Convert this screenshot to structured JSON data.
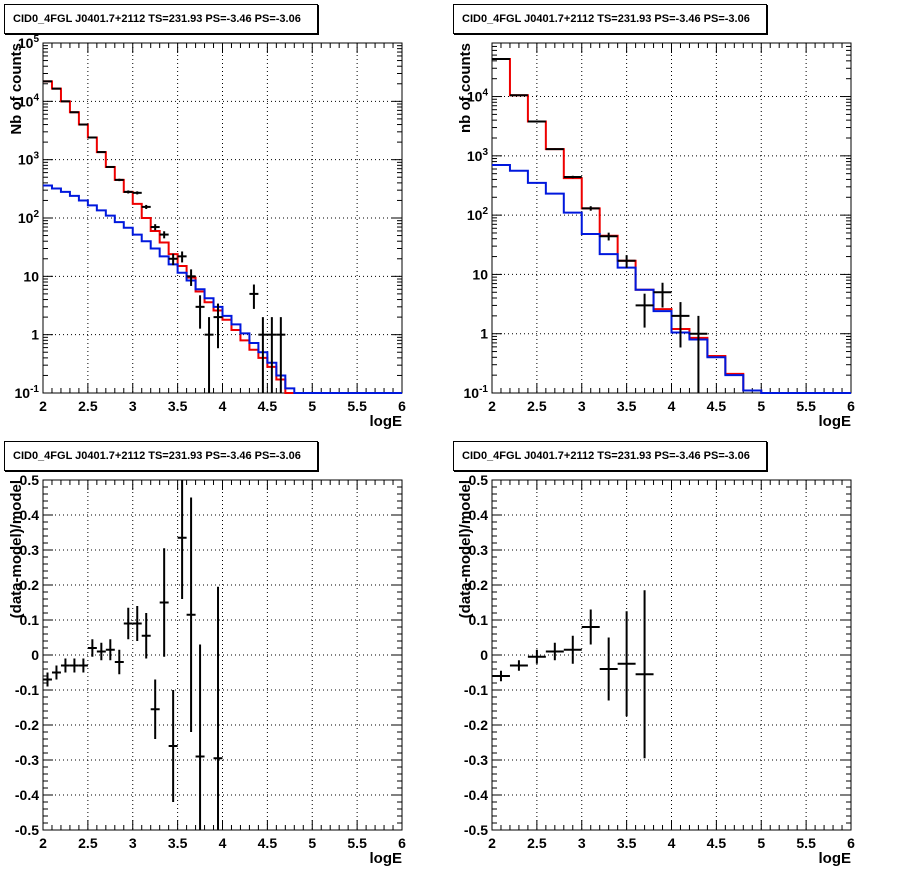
{
  "colors": {
    "data": "#000000",
    "total_model": "#ee0000",
    "source_model": "#0018dd",
    "grid": "#000000"
  },
  "chart_data": [
    {
      "type": "line",
      "title": "CID0_4FGL J0401.7+2112 TS=231.93 PS=-3.46 PS=-3.06",
      "xlabel": "logE",
      "ylabel": "Nb of counts",
      "xlim": [
        2,
        6
      ],
      "ylim": [
        0.1,
        100000
      ],
      "yscale": "log",
      "xticks": [
        "2",
        "2.5",
        "3",
        "3.5",
        "4",
        "4.5",
        "5",
        "5.5",
        "6"
      ],
      "yticks": [
        "10^{-1}",
        "1",
        "10",
        "10^{2}",
        "10^{3}",
        "10^{4}",
        "10^{5}"
      ],
      "grid": true,
      "bin_edges": [
        2.0,
        2.1,
        2.2,
        2.3,
        2.4,
        2.5,
        2.6,
        2.7,
        2.8,
        2.9,
        3.0,
        3.1,
        3.2,
        3.3,
        3.4,
        3.5,
        3.6,
        3.7,
        3.8,
        3.9,
        4.0,
        4.1,
        4.2,
        4.3,
        4.4,
        4.5,
        4.6,
        4.7,
        4.8,
        4.9,
        5.0,
        5.1,
        5.2,
        5.3,
        5.4,
        5.5,
        5.6,
        5.7,
        5.8,
        5.9,
        6.0
      ],
      "series": [
        {
          "role": "total_model",
          "values": [
            22000,
            16500,
            10000,
            6500,
            4000,
            2400,
            1350,
            750,
            450,
            280,
            175,
            100,
            60,
            38,
            24,
            15,
            9.5,
            5.5,
            3.6,
            2.6,
            1.8,
            1.2,
            0.8,
            0.55,
            0.4,
            0.28,
            0.17,
            0.1,
            0.1,
            0.1,
            0.1,
            0.1,
            0.1,
            0.1,
            0.1,
            0.1,
            0.1,
            0.1,
            0.1,
            0.1
          ]
        },
        {
          "role": "source_model",
          "values": [
            360,
            320,
            280,
            240,
            200,
            165,
            135,
            110,
            85,
            68,
            52,
            40,
            30,
            22,
            16,
            11.5,
            8.5,
            6,
            4.2,
            3,
            2.1,
            1.5,
            1.05,
            0.72,
            0.5,
            0.33,
            0.2,
            0.12,
            0.1,
            0.1,
            0.1,
            0.1,
            0.1,
            0.1,
            0.1,
            0.1,
            0.1,
            0.1,
            0.1,
            0.1
          ]
        },
        {
          "role": "data",
          "points": [
            {
              "x": 2.05,
              "y": 22000
            },
            {
              "x": 2.15,
              "y": 16500
            },
            {
              "x": 2.25,
              "y": 10000
            },
            {
              "x": 2.35,
              "y": 6500
            },
            {
              "x": 2.45,
              "y": 4000
            },
            {
              "x": 2.55,
              "y": 2400
            },
            {
              "x": 2.65,
              "y": 1350
            },
            {
              "x": 2.75,
              "y": 750
            },
            {
              "x": 2.85,
              "y": 450
            },
            {
              "x": 2.95,
              "y": 280
            },
            {
              "x": 3.05,
              "y": 270
            },
            {
              "x": 3.15,
              "y": 155
            },
            {
              "x": 3.25,
              "y": 70
            },
            {
              "x": 3.35,
              "y": 52
            },
            {
              "x": 3.45,
              "y": 20
            },
            {
              "x": 3.55,
              "y": 22
            },
            {
              "x": 3.65,
              "y": 10
            },
            {
              "x": 3.75,
              "y": 3
            },
            {
              "x": 3.85,
              "y": 1
            },
            {
              "x": 3.95,
              "y": 2
            },
            {
              "x": 4.35,
              "y": 5
            },
            {
              "x": 4.45,
              "y": 1
            },
            {
              "x": 4.55,
              "y": 1
            },
            {
              "x": 4.65,
              "y": 1
            }
          ]
        }
      ]
    },
    {
      "type": "line",
      "title": "CID0_4FGL J0401.7+2112 TS=231.93 PS=-3.46 PS=-3.06",
      "xlabel": "logE",
      "ylabel": "nb of counts",
      "xlim": [
        2,
        6
      ],
      "ylim": [
        0.1,
        80000
      ],
      "yscale": "log",
      "xticks": [
        "2",
        "2.5",
        "3",
        "3.5",
        "4",
        "4.5",
        "5",
        "5.5",
        "6"
      ],
      "yticks": [
        "10^{-1}",
        "1",
        "10",
        "10^{2}",
        "10^{3}",
        "10^{4}"
      ],
      "grid": true,
      "bin_edges": [
        2.0,
        2.2,
        2.4,
        2.6,
        2.8,
        3.0,
        3.2,
        3.4,
        3.6,
        3.8,
        4.0,
        4.2,
        4.4,
        4.6,
        4.8,
        5.0,
        5.2,
        5.4,
        5.6,
        5.8,
        6.0
      ],
      "series": [
        {
          "role": "total_model",
          "values": [
            43000,
            10500,
            3800,
            1300,
            420,
            130,
            45,
            17,
            5.5,
            2.6,
            1.2,
            0.85,
            0.42,
            0.21,
            0.11,
            0.1,
            0.1,
            0.1,
            0.1,
            0.1
          ]
        },
        {
          "role": "source_model",
          "values": [
            700,
            560,
            350,
            230,
            110,
            48,
            22,
            13,
            5.5,
            2.4,
            1.05,
            0.8,
            0.4,
            0.2,
            0.11,
            0.1,
            0.1,
            0.1,
            0.1,
            0.1
          ]
        },
        {
          "role": "data",
          "points": [
            {
              "x": 2.1,
              "y": 43000
            },
            {
              "x": 2.3,
              "y": 10500
            },
            {
              "x": 2.5,
              "y": 3800
            },
            {
              "x": 2.7,
              "y": 1300
            },
            {
              "x": 2.9,
              "y": 440
            },
            {
              "x": 3.1,
              "y": 130
            },
            {
              "x": 3.3,
              "y": 44
            },
            {
              "x": 3.5,
              "y": 17
            },
            {
              "x": 3.7,
              "y": 3
            },
            {
              "x": 3.9,
              "y": 5
            },
            {
              "x": 4.1,
              "y": 2
            },
            {
              "x": 4.3,
              "y": 1
            }
          ]
        }
      ]
    },
    {
      "type": "scatter",
      "title": "CID0_4FGL J0401.7+2112 TS=231.93 PS=-3.46 PS=-3.06",
      "xlabel": "logE",
      "ylabel": "(data-model)/model",
      "xlim": [
        2,
        6
      ],
      "ylim": [
        -0.5,
        0.5
      ],
      "xticks": [
        "2",
        "2.5",
        "3",
        "3.5",
        "4",
        "4.5",
        "5",
        "5.5",
        "6"
      ],
      "yticks": [
        "-0.5",
        "-0.4",
        "-0.3",
        "-0.2",
        "-0.1",
        "0",
        "0.1",
        "0.2",
        "0.3",
        "0.4",
        "0.5"
      ],
      "grid": true,
      "xerr": 0.05,
      "points": [
        {
          "x": 2.05,
          "y": -0.07,
          "err": 0.02
        },
        {
          "x": 2.15,
          "y": -0.05,
          "err": 0.02
        },
        {
          "x": 2.25,
          "y": -0.03,
          "err": 0.02
        },
        {
          "x": 2.35,
          "y": -0.03,
          "err": 0.02
        },
        {
          "x": 2.45,
          "y": -0.03,
          "err": 0.02
        },
        {
          "x": 2.55,
          "y": 0.02,
          "err": 0.025
        },
        {
          "x": 2.65,
          "y": 0.01,
          "err": 0.025
        },
        {
          "x": 2.75,
          "y": 0.015,
          "err": 0.03
        },
        {
          "x": 2.85,
          "y": -0.02,
          "err": 0.035
        },
        {
          "x": 2.95,
          "y": 0.09,
          "err": 0.045
        },
        {
          "x": 3.05,
          "y": 0.09,
          "err": 0.05
        },
        {
          "x": 3.15,
          "y": 0.055,
          "err": 0.065
        },
        {
          "x": 3.25,
          "y": -0.155,
          "err": 0.085
        },
        {
          "x": 3.35,
          "y": 0.15,
          "err": 0.155
        },
        {
          "x": 3.45,
          "y": -0.26,
          "err": 0.16
        },
        {
          "x": 3.55,
          "y": 0.335,
          "err": 0.175
        },
        {
          "x": 3.65,
          "y": 0.115,
          "err": 0.335
        },
        {
          "x": 3.75,
          "y": -0.29,
          "err": 0.32
        },
        {
          "x": 3.95,
          "y": -0.295,
          "err": 0.49
        }
      ]
    },
    {
      "type": "scatter",
      "title": "CID0_4FGL J0401.7+2112 TS=231.93 PS=-3.46 PS=-3.06",
      "xlabel": "logE",
      "ylabel": "(data-model)/model",
      "xlim": [
        2,
        6
      ],
      "ylim": [
        -0.5,
        0.5
      ],
      "xticks": [
        "2",
        "2.5",
        "3",
        "3.5",
        "4",
        "4.5",
        "5",
        "5.5",
        "6"
      ],
      "yticks": [
        "-0.5",
        "-0.4",
        "-0.3",
        "-0.2",
        "-0.1",
        "0",
        "0.1",
        "0.2",
        "0.3",
        "0.4",
        "0.5"
      ],
      "grid": true,
      "xerr": 0.1,
      "points": [
        {
          "x": 2.1,
          "y": -0.06,
          "err": 0.015
        },
        {
          "x": 2.3,
          "y": -0.03,
          "err": 0.015
        },
        {
          "x": 2.5,
          "y": -0.005,
          "err": 0.02
        },
        {
          "x": 2.7,
          "y": 0.01,
          "err": 0.025
        },
        {
          "x": 2.9,
          "y": 0.015,
          "err": 0.04
        },
        {
          "x": 3.1,
          "y": 0.08,
          "err": 0.05
        },
        {
          "x": 3.3,
          "y": -0.04,
          "err": 0.09
        },
        {
          "x": 3.5,
          "y": -0.025,
          "err": 0.15
        },
        {
          "x": 3.7,
          "y": -0.055,
          "err": 0.24
        }
      ]
    }
  ]
}
